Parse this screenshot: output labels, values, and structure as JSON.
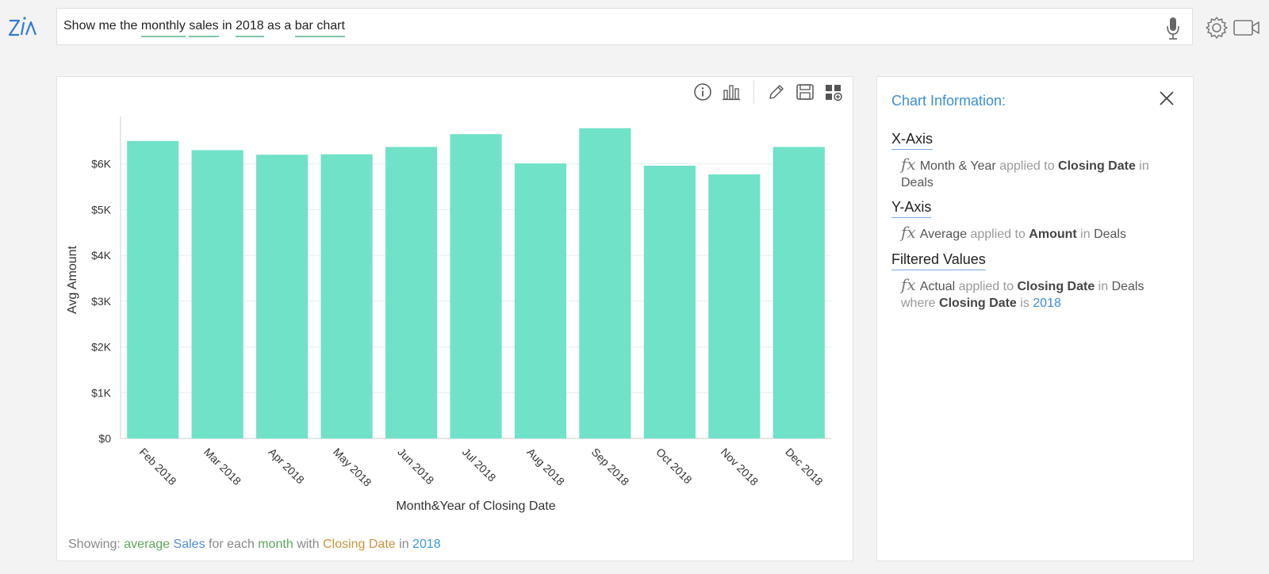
{
  "query": {
    "tokens": [
      "Show me the ",
      "monthly",
      " ",
      "sales",
      " in ",
      "2018",
      " as a ",
      "bar chart"
    ],
    "underlined": [
      false,
      true,
      false,
      true,
      false,
      true,
      false,
      true
    ]
  },
  "chart_data": {
    "type": "bar",
    "categories": [
      "Feb 2018",
      "Mar 2018",
      "Apr 2018",
      "May 2018",
      "Jun 2018",
      "Jul 2018",
      "Aug 2018",
      "Sep 2018",
      "Oct 2018",
      "Nov 2018",
      "Dec 2018"
    ],
    "values": [
      6500,
      6300,
      6200,
      6210,
      6370,
      6650,
      6010,
      6780,
      5960,
      5770,
      6370
    ],
    "xlabel": "Month&Year of Closing Date",
    "ylabel": "Avg Amount",
    "ylim": [
      0,
      7000
    ],
    "yticks": [
      0,
      1000,
      2000,
      3000,
      4000,
      5000,
      6000
    ],
    "ytick_labels": [
      "$0",
      "$1K",
      "$2K",
      "$3K",
      "$4K",
      "$5K",
      "$6K"
    ],
    "bar_color": "#6fe2c8",
    "grid": true
  },
  "showing": {
    "prefix": "Showing: ",
    "agg": "average",
    "measure": "Sales",
    "t1": " for each ",
    "period": "month",
    "t2": " with ",
    "field": "Closing Date",
    "t3": " in ",
    "year": "2018"
  },
  "info": {
    "title": "Chart Information:",
    "x_axis": {
      "heading": "X-Axis",
      "fx": "fx",
      "func": "Month & Year",
      "applied": " applied to ",
      "field": "Closing Date",
      "in": " in",
      "table": "Deals"
    },
    "y_axis": {
      "heading": "Y-Axis",
      "fx": "fx",
      "func": "Average",
      "applied": " applied to ",
      "field": "Amount",
      "in": " in ",
      "table": "Deals"
    },
    "filtered": {
      "heading": "Filtered Values",
      "fx": "fx",
      "func": "Actual",
      "applied": " applied to ",
      "field": "Closing Date",
      "in": " in ",
      "table": "Deals",
      "where": "where ",
      "field2": "Closing Date",
      "is": " is ",
      "value": "2018"
    }
  },
  "icons": {
    "logo": "zia-logo",
    "mic": "microphone-icon",
    "gear": "gear-icon",
    "video": "video-camera-icon",
    "info": "info-icon",
    "chart": "bar-chart-icon",
    "edit": "pencil-icon",
    "save": "save-icon",
    "add": "add-to-dashboard-icon",
    "close": "close-icon"
  }
}
